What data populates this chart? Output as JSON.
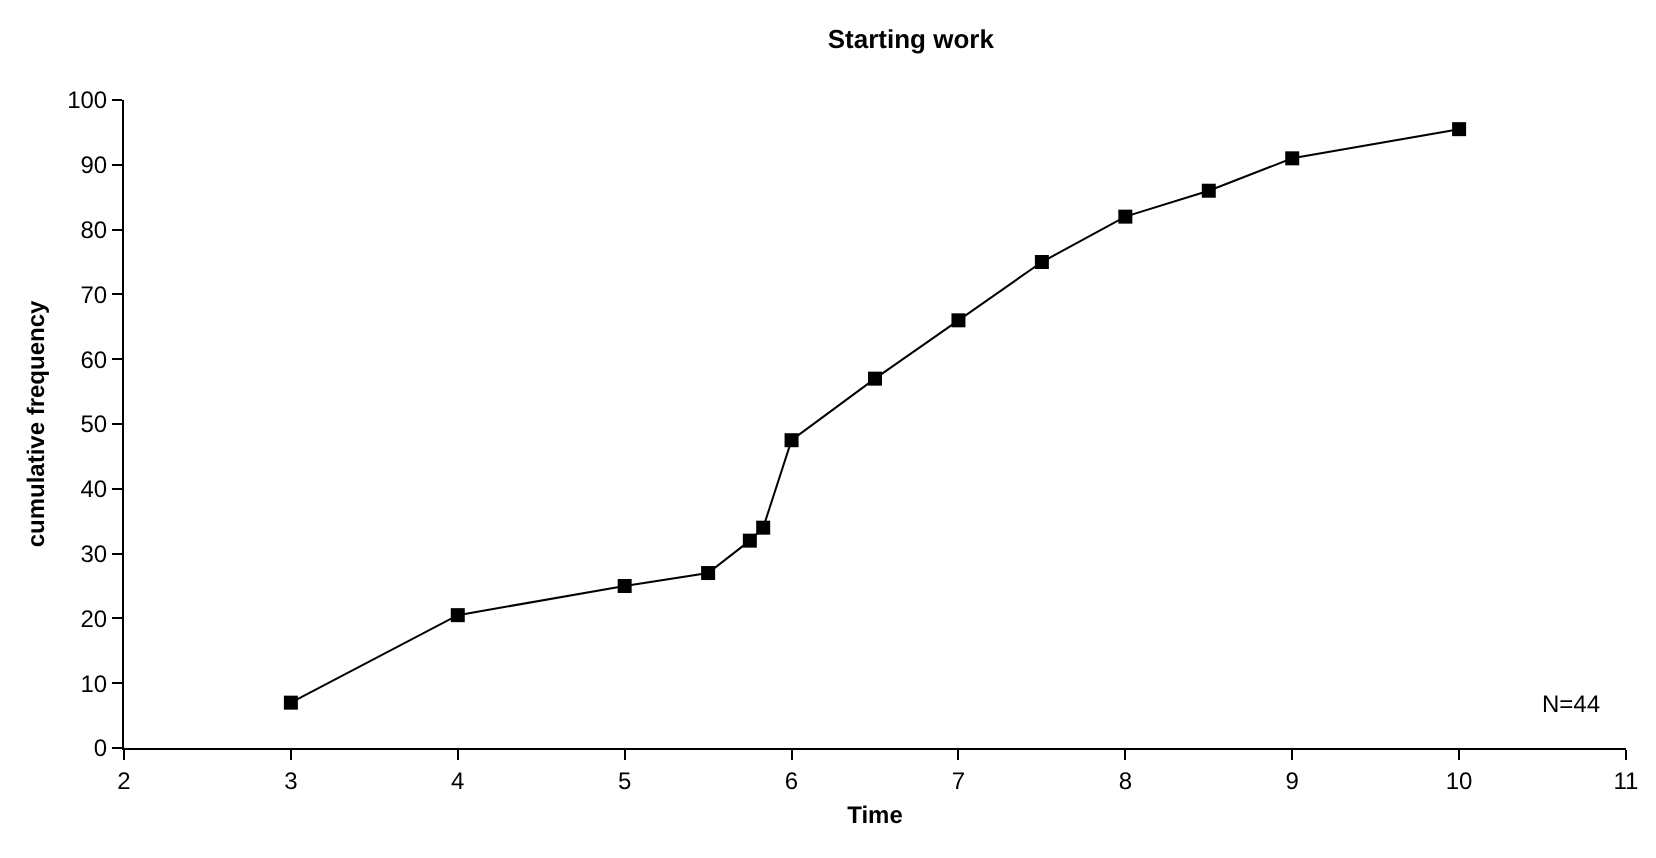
{
  "chart_data": {
    "type": "line",
    "title": "Starting work",
    "xlabel": "Time",
    "ylabel": "cumulative frequency",
    "x": [
      3,
      4,
      5,
      5.5,
      5.75,
      5.83,
      6,
      6.5,
      7,
      7.5,
      8,
      8.5,
      9,
      10
    ],
    "series": [
      {
        "color": "#000000",
        "values": [
          7,
          20.5,
          25,
          27,
          32,
          34,
          47.5,
          57,
          66,
          75,
          82,
          86,
          91,
          95.5
        ]
      }
    ],
    "xlim": [
      2,
      11
    ],
    "xticks": [
      2,
      3,
      4,
      5,
      6,
      7,
      8,
      9,
      10,
      11
    ],
    "ylim": [
      0,
      100
    ],
    "yticks": [
      0,
      10,
      20,
      30,
      40,
      50,
      60,
      70,
      80,
      90,
      100
    ],
    "grid": false,
    "marker": "square",
    "line_style": "solid",
    "annotations": [
      "N=44"
    ]
  }
}
